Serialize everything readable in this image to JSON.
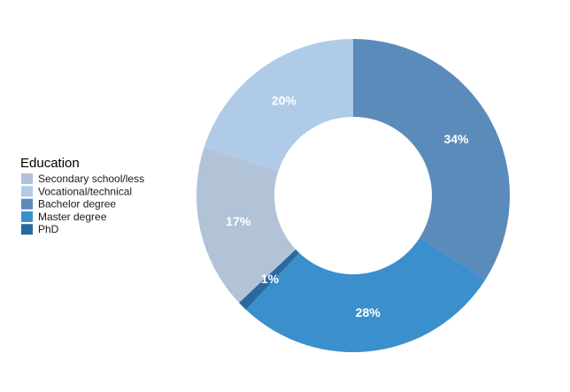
{
  "chart_data": {
    "type": "pie",
    "variant": "donut",
    "legend": {
      "title": "Education",
      "placement": "left"
    },
    "slices": [
      {
        "label": "Bachelor degree",
        "value": 34,
        "display": "34%",
        "color": "#5b8bbb"
      },
      {
        "label": "Master degree",
        "value": 28,
        "display": "28%",
        "color": "#3a8fcc"
      },
      {
        "label": "PhD",
        "value": 1,
        "display": "1%",
        "color": "#2a69a0"
      },
      {
        "label": "Secondary school/less",
        "value": 17,
        "display": "17%",
        "color": "#b2c3d8"
      },
      {
        "label": "Vocational/technical",
        "value": 20,
        "display": "20%",
        "color": "#afcbe8"
      }
    ],
    "legend_order": [
      "Secondary school/less",
      "Vocational/technical",
      "Bachelor degree",
      "Master degree",
      "PhD"
    ]
  }
}
